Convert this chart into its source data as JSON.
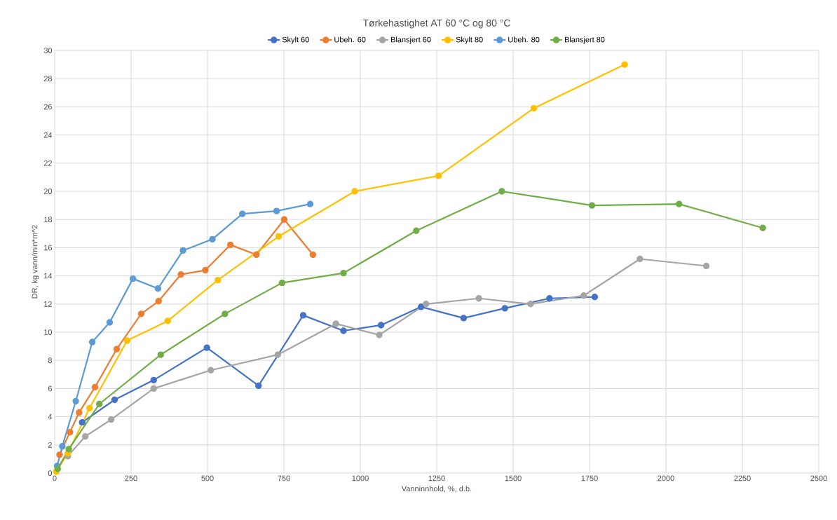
{
  "chart_data": {
    "type": "line",
    "title": "Tørkehastighet AT 60 °C og 80 °C",
    "xlabel": "Vanninnhold, %, d.b.",
    "ylabel": "DR, kg vann/min*m^2",
    "xlim": [
      0,
      2500
    ],
    "ylim": [
      0,
      30
    ],
    "xticks": [
      0,
      250,
      500,
      750,
      1000,
      1250,
      1500,
      1750,
      2000,
      2250,
      2500
    ],
    "yticks": [
      0,
      2,
      4,
      6,
      8,
      10,
      12,
      14,
      16,
      18,
      20,
      22,
      24,
      26,
      28,
      30
    ],
    "grid": true,
    "legend": "top",
    "marker": "circle",
    "line_style": "solid",
    "series": [
      {
        "name": "Skylt 60",
        "color": "#4472c4",
        "x": [
          90,
          196,
          324,
          498,
          667,
          813,
          945,
          1068,
          1199,
          1338,
          1473,
          1619,
          1767
        ],
        "values": [
          3.6,
          5.2,
          6.6,
          8.9,
          6.2,
          11.2,
          10.1,
          10.5,
          11.8,
          11.0,
          11.7,
          12.4,
          12.5
        ]
      },
      {
        "name": "Ubeh. 60",
        "color": "#ed7d31",
        "x": [
          16,
          50,
          80,
          132,
          203,
          283,
          340,
          413,
          493,
          575,
          660,
          751,
          845
        ],
        "values": [
          1.3,
          2.9,
          4.3,
          6.1,
          8.8,
          11.3,
          12.2,
          14.1,
          14.4,
          16.2,
          15.5,
          18.0,
          15.5
        ]
      },
      {
        "name": "Blansjert 60",
        "color": "#a5a5a5",
        "x": [
          43,
          100,
          185,
          324,
          511,
          730,
          920,
          1062,
          1215,
          1388,
          1557,
          1731,
          1915,
          2132
        ],
        "values": [
          1.2,
          2.6,
          3.8,
          6.0,
          7.3,
          8.4,
          10.6,
          9.8,
          12.0,
          12.4,
          12.0,
          12.6,
          15.2,
          14.7
        ]
      },
      {
        "name": "Skylt 80",
        "color": "#ffc000",
        "x": [
          5,
          43,
          114,
          237,
          370,
          534,
          733,
          982,
          1256,
          1568,
          1865
        ],
        "values": [
          0.1,
          1.4,
          4.6,
          9.4,
          10.8,
          13.7,
          16.8,
          20.0,
          21.1,
          25.9,
          29.0
        ]
      },
      {
        "name": "Ubeh. 80",
        "color": "#5b9bd5",
        "x": [
          8,
          25,
          69,
          123,
          180,
          256,
          338,
          420,
          516,
          614,
          726,
          836
        ],
        "values": [
          0.5,
          1.9,
          5.1,
          9.3,
          10.7,
          13.8,
          13.1,
          15.8,
          16.6,
          18.4,
          18.6,
          19.1
        ]
      },
      {
        "name": "Blansjert 80",
        "color": "#70ad47",
        "x": [
          10,
          46,
          146,
          347,
          557,
          744,
          945,
          1183,
          1463,
          1758,
          2043,
          2317
        ],
        "values": [
          0.3,
          1.7,
          4.9,
          8.4,
          11.3,
          13.5,
          14.2,
          17.2,
          20.0,
          19.0,
          19.1,
          17.4
        ]
      }
    ]
  }
}
